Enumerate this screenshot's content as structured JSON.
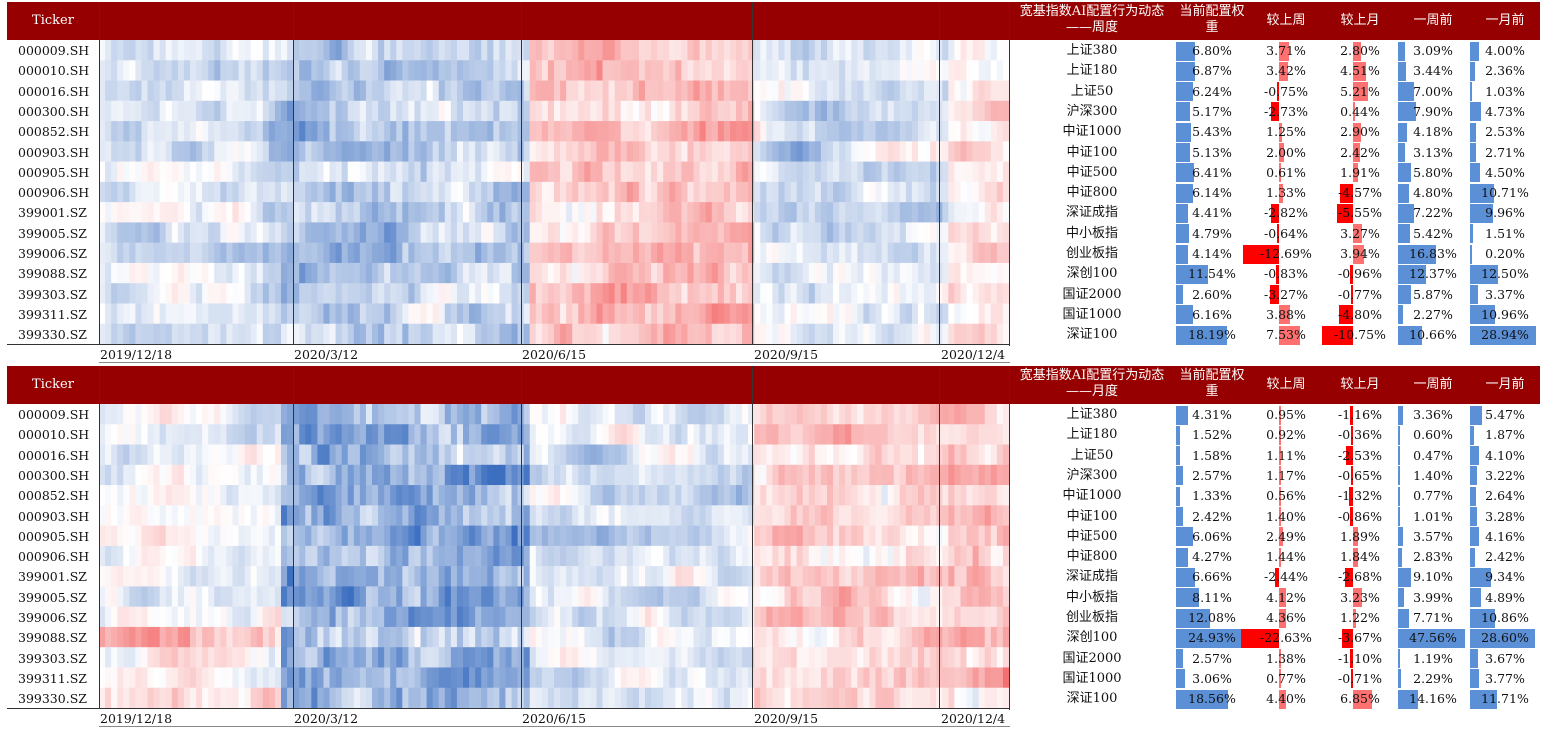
{
  "colors": {
    "header_bg": "#960000",
    "header_text": "#ffffff",
    "positive_bar": "#5b8fd6",
    "negative_bar": "#ff0000",
    "heat_high": "#3c6fc0",
    "heat_low": "#f36060"
  },
  "date_labels": [
    "2019/12/18",
    "2020/3/12",
    "2020/6/15",
    "2020/9/15",
    "2020/12/4"
  ],
  "tickers": [
    "000009.SH",
    "000010.SH",
    "000016.SH",
    "000300.SH",
    "000852.SH",
    "000903.SH",
    "000905.SH",
    "000906.SH",
    "399001.SZ",
    "399005.SZ",
    "399006.SZ",
    "399088.SZ",
    "399303.SZ",
    "399311.SZ",
    "399330.SZ"
  ],
  "index_names": [
    "上证380",
    "上证180",
    "上证50",
    "沪深300",
    "中证1000",
    "中证100",
    "中证500",
    "中证800",
    "深证成指",
    "中小板指",
    "创业板指",
    "深创100",
    "国证2000",
    "国证1000",
    "深证100"
  ],
  "chart_data": [
    {
      "type": "heatmap",
      "header": {
        "ticker": "Ticker",
        "title": "宽基指数AI配置行为动态——周度",
        "cur_weight": "当前配置权重",
        "vs_week": "较上周",
        "vs_month": "较上月",
        "week_ago": "一周前",
        "month_ago": "一月前"
      },
      "rows": [
        {
          "cur": "6.80%",
          "wk": "3.71%",
          "mo": "2.80%",
          "w1": "3.09%",
          "m1": "4.00%"
        },
        {
          "cur": "6.87%",
          "wk": "3.42%",
          "mo": "4.51%",
          "w1": "3.44%",
          "m1": "2.36%"
        },
        {
          "cur": "6.24%",
          "wk": "-0.75%",
          "mo": "5.21%",
          "w1": "7.00%",
          "m1": "1.03%"
        },
        {
          "cur": "5.17%",
          "wk": "-2.73%",
          "mo": "0.44%",
          "w1": "7.90%",
          "m1": "4.73%"
        },
        {
          "cur": "5.43%",
          "wk": "1.25%",
          "mo": "2.90%",
          "w1": "4.18%",
          "m1": "2.53%"
        },
        {
          "cur": "5.13%",
          "wk": "2.00%",
          "mo": "2.42%",
          "w1": "3.13%",
          "m1": "2.71%"
        },
        {
          "cur": "6.41%",
          "wk": "0.61%",
          "mo": "1.91%",
          "w1": "5.80%",
          "m1": "4.50%"
        },
        {
          "cur": "6.14%",
          "wk": "1.33%",
          "mo": "-4.57%",
          "w1": "4.80%",
          "m1": "10.71%"
        },
        {
          "cur": "4.41%",
          "wk": "-2.82%",
          "mo": "-5.55%",
          "w1": "7.22%",
          "m1": "9.96%"
        },
        {
          "cur": "4.79%",
          "wk": "-0.64%",
          "mo": "3.27%",
          "w1": "5.42%",
          "m1": "1.51%"
        },
        {
          "cur": "4.14%",
          "wk": "-12.69%",
          "mo": "3.94%",
          "w1": "16.83%",
          "m1": "0.20%"
        },
        {
          "cur": "11.54%",
          "wk": "-0.83%",
          "mo": "-0.96%",
          "w1": "12.37%",
          "m1": "12.50%"
        },
        {
          "cur": "2.60%",
          "wk": "-3.27%",
          "mo": "-0.77%",
          "w1": "5.87%",
          "m1": "3.37%"
        },
        {
          "cur": "6.16%",
          "wk": "3.88%",
          "mo": "-4.80%",
          "w1": "2.27%",
          "m1": "10.96%"
        },
        {
          "cur": "18.19%",
          "wk": "7.53%",
          "mo": "-10.75%",
          "w1": "10.66%",
          "m1": "28.94%"
        }
      ]
    },
    {
      "type": "heatmap",
      "header": {
        "ticker": "Ticker",
        "title": "宽基指数AI配置行为动态——月度",
        "cur_weight": "当前配置权重",
        "vs_week": "较上周",
        "vs_month": "较上月",
        "week_ago": "一周前",
        "month_ago": "一月前"
      },
      "rows": [
        {
          "cur": "4.31%",
          "wk": "0.95%",
          "mo": "-1.16%",
          "w1": "3.36%",
          "m1": "5.47%"
        },
        {
          "cur": "1.52%",
          "wk": "0.92%",
          "mo": "-0.36%",
          "w1": "0.60%",
          "m1": "1.87%"
        },
        {
          "cur": "1.58%",
          "wk": "1.11%",
          "mo": "-2.53%",
          "w1": "0.47%",
          "m1": "4.10%"
        },
        {
          "cur": "2.57%",
          "wk": "1.17%",
          "mo": "-0.65%",
          "w1": "1.40%",
          "m1": "3.22%"
        },
        {
          "cur": "1.33%",
          "wk": "0.56%",
          "mo": "-1.32%",
          "w1": "0.77%",
          "m1": "2.64%"
        },
        {
          "cur": "2.42%",
          "wk": "1.40%",
          "mo": "-0.86%",
          "w1": "1.01%",
          "m1": "3.28%"
        },
        {
          "cur": "6.06%",
          "wk": "2.49%",
          "mo": "1.89%",
          "w1": "3.57%",
          "m1": "4.16%"
        },
        {
          "cur": "4.27%",
          "wk": "1.44%",
          "mo": "1.84%",
          "w1": "2.83%",
          "m1": "2.42%"
        },
        {
          "cur": "6.66%",
          "wk": "-2.44%",
          "mo": "-2.68%",
          "w1": "9.10%",
          "m1": "9.34%"
        },
        {
          "cur": "8.11%",
          "wk": "4.12%",
          "mo": "3.23%",
          "w1": "3.99%",
          "m1": "4.89%"
        },
        {
          "cur": "12.08%",
          "wk": "4.36%",
          "mo": "1.22%",
          "w1": "7.71%",
          "m1": "10.86%"
        },
        {
          "cur": "24.93%",
          "wk": "-22.63%",
          "mo": "-3.67%",
          "w1": "47.56%",
          "m1": "28.60%"
        },
        {
          "cur": "2.57%",
          "wk": "1.38%",
          "mo": "-1.10%",
          "w1": "1.19%",
          "m1": "3.67%"
        },
        {
          "cur": "3.06%",
          "wk": "0.77%",
          "mo": "-0.71%",
          "w1": "2.29%",
          "m1": "3.77%"
        },
        {
          "cur": "18.56%",
          "wk": "4.40%",
          "mo": "6.85%",
          "w1": "14.16%",
          "m1": "11.71%"
        }
      ]
    }
  ]
}
